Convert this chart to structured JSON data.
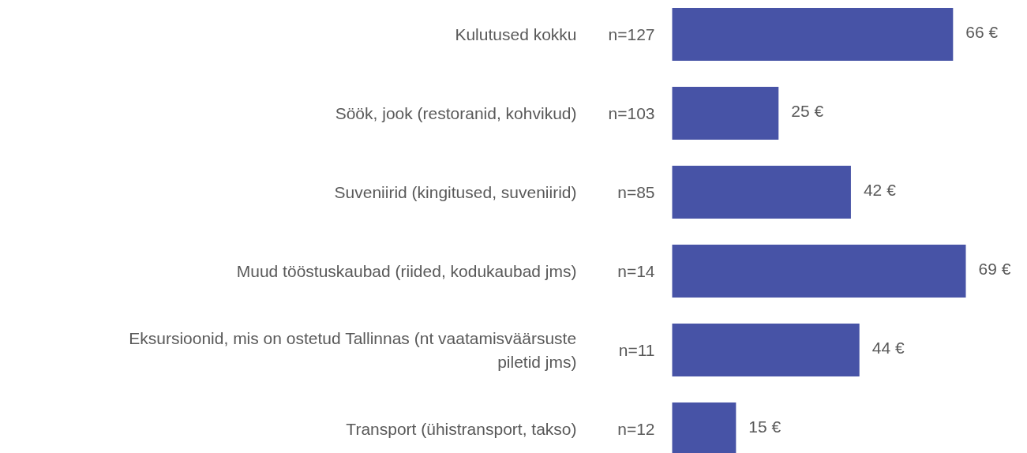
{
  "chart_data": {
    "type": "bar",
    "orientation": "horizontal",
    "categories": [
      "Kulutused kokku",
      "Söök, jook (restoranid, kohvikud)",
      "Suveniirid (kingitused, suveniirid)",
      "Muud tööstuskaubad (riided, kodukaubad jms)",
      "Eksursioonid, mis on ostetud Tallinnas (nt vaatamisväärsuste piletid jms)",
      "Transport (ühistransport, takso)"
    ],
    "values": [
      66,
      25,
      42,
      69,
      44,
      15
    ],
    "value_labels": [
      "66 €",
      "25 €",
      "42 €",
      "69 €",
      "44 €",
      "15 €"
    ],
    "color": "#4753a6",
    "annotations": [
      "n=127",
      "n=103",
      "n=85",
      "n=14",
      "n=11",
      "n=12"
    ]
  }
}
